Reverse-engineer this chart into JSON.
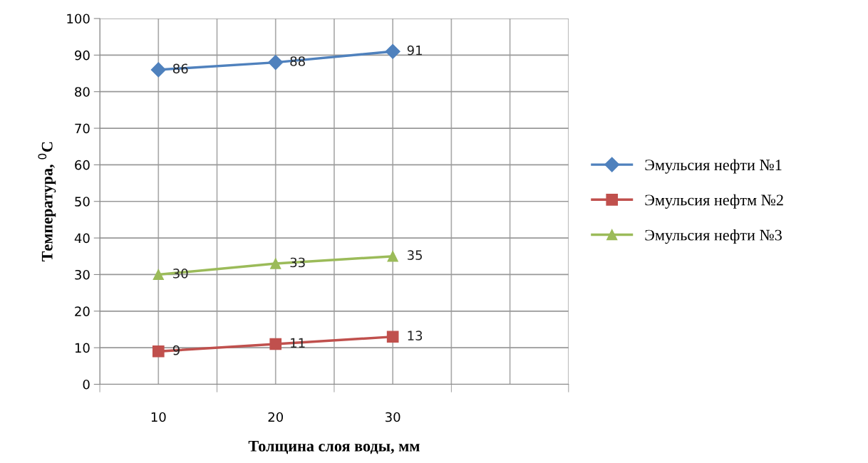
{
  "chart_data": {
    "type": "line",
    "xlabel": "Толщина слоя воды, мм",
    "ylabel": "Температура, $^{0}$C",
    "categories": [
      "10",
      "20",
      "30",
      null
    ],
    "series": [
      {
        "name": "Эмульсия нефти №1",
        "color": "#4f81bd",
        "marker": "diamond",
        "values": [
          86,
          88,
          91,
          null
        ]
      },
      {
        "name": "Эмульсия нефтм №2",
        "color": "#c0504d",
        "marker": "square",
        "values": [
          9,
          11,
          13,
          null
        ]
      },
      {
        "name": "Эмульсия нефти №3",
        "color": "#9bbb59",
        "marker": "triangle",
        "values": [
          30,
          33,
          35,
          null
        ]
      }
    ],
    "ylim": [
      0,
      100
    ],
    "yticks": [
      0,
      10,
      20,
      30,
      40,
      50,
      60,
      70,
      80,
      90,
      100
    ],
    "grid": true,
    "legend": "right",
    "data_labels": true
  }
}
